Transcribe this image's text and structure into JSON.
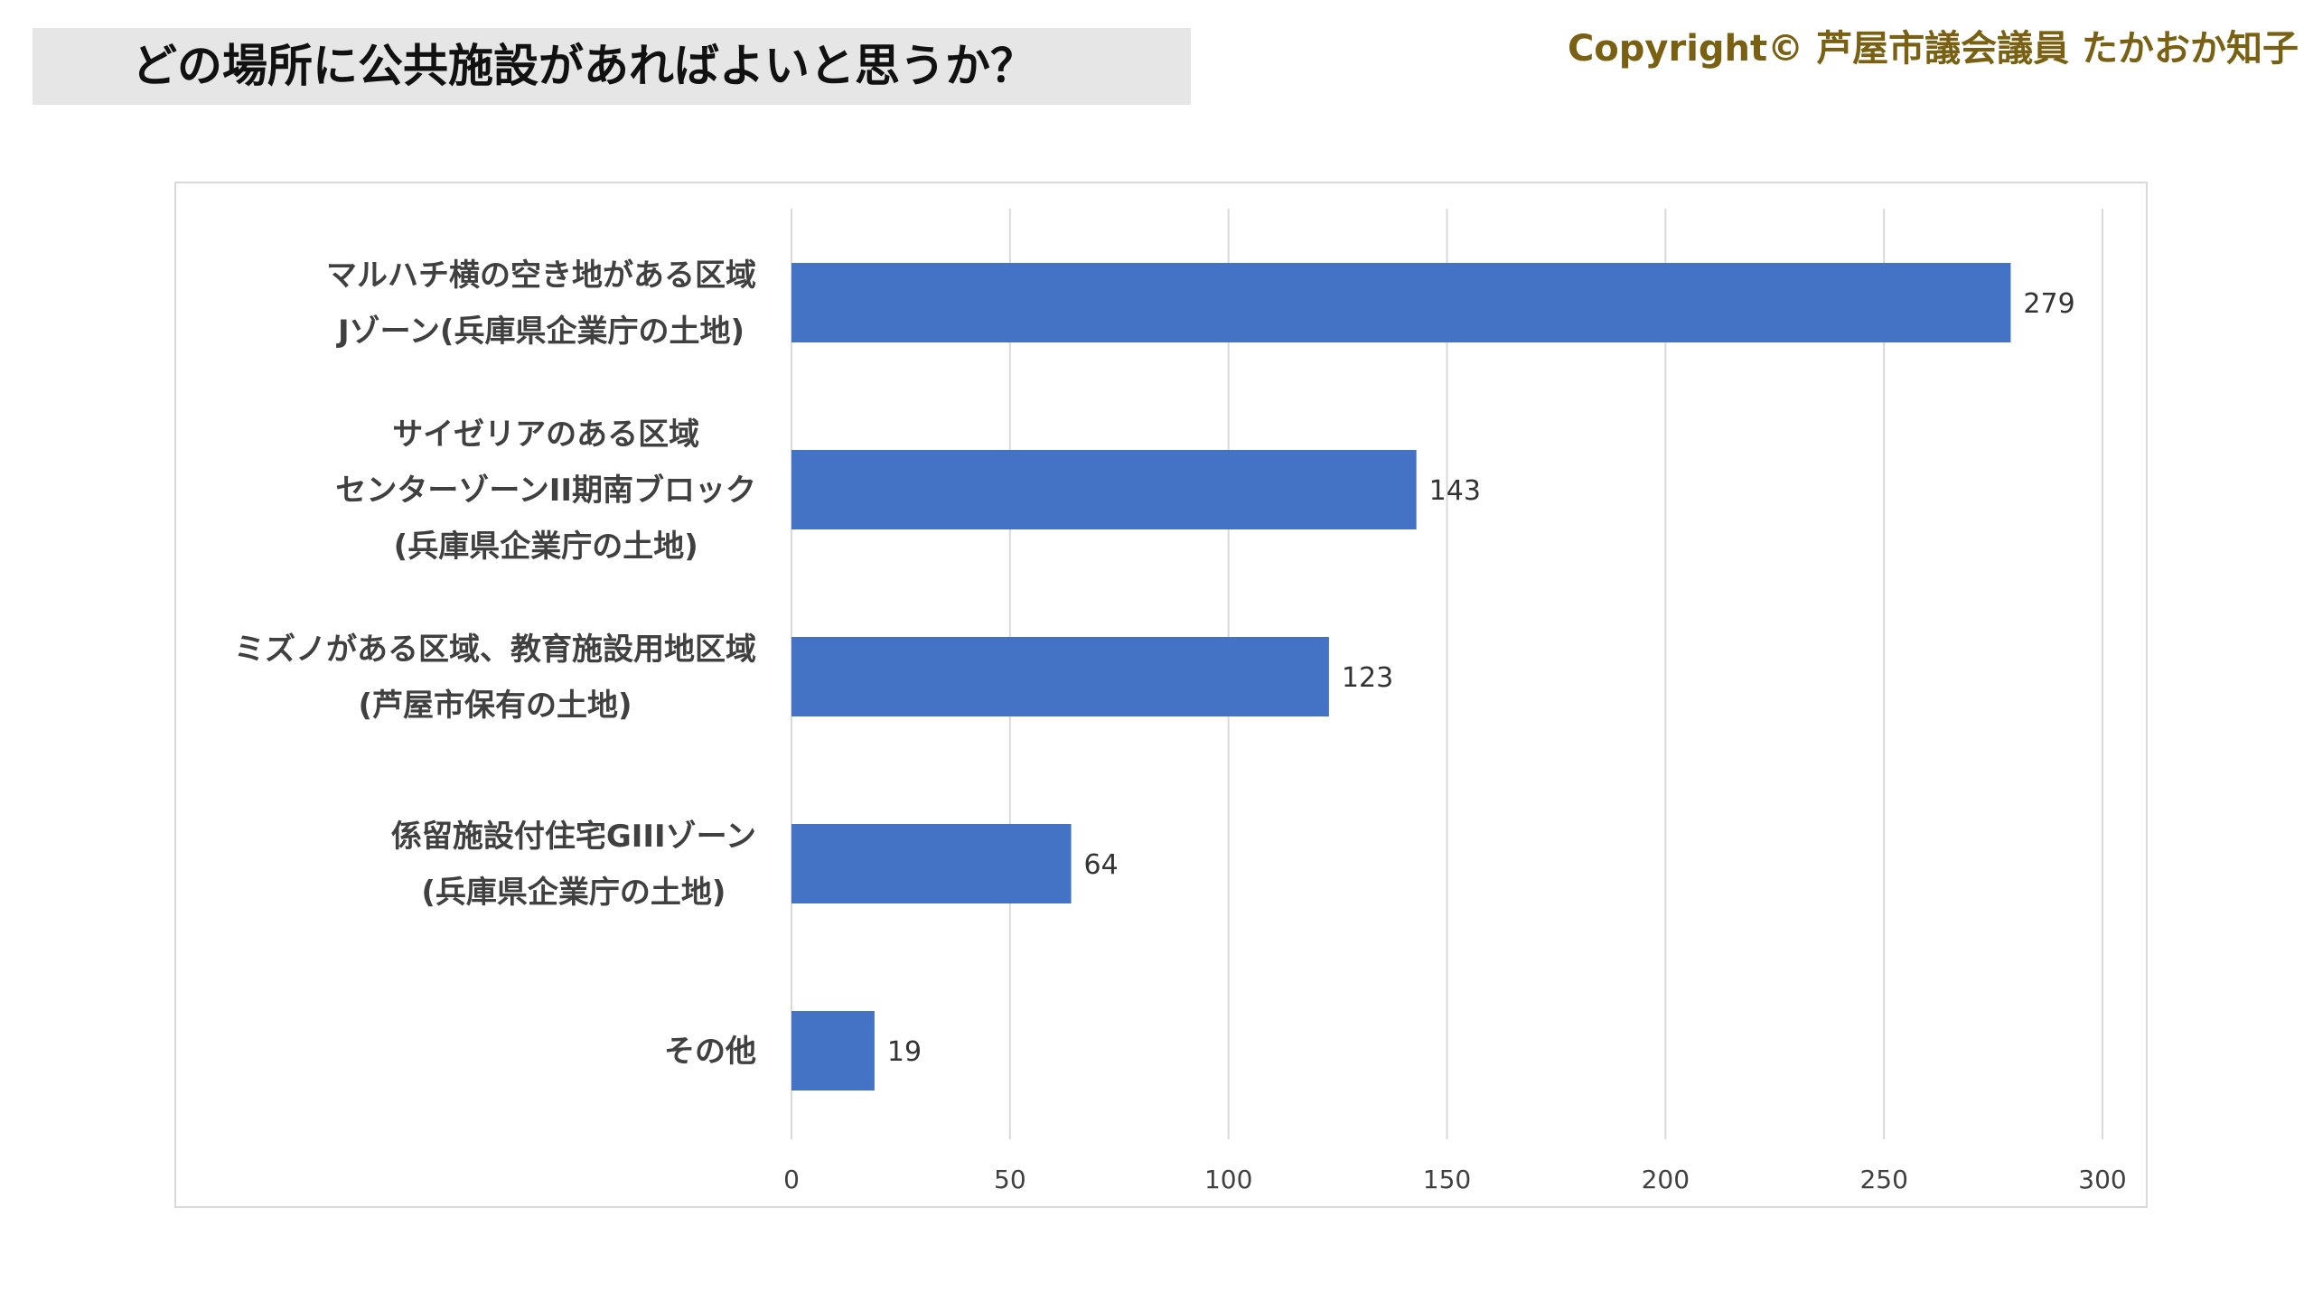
{
  "page": {
    "title": "どの場所に公共施設があればよいと思うか？",
    "copyright": "Copyright© 芦屋市議会議員 たかおか知子"
  },
  "colors": {
    "bar": "#4472c4",
    "title_bg": "#e6e6e6",
    "copyright_text": "#7a6012",
    "gridline": "#d9d9d9"
  },
  "chart_data": {
    "type": "bar",
    "orientation": "horizontal",
    "categories": [
      [
        "マルハチ横の空き地がある区域",
        "Jゾーン(兵庫県企業庁の土地)"
      ],
      [
        "サイゼリアのある区域",
        "センターゾーンII期南ブロック",
        "(兵庫県企業庁の土地)"
      ],
      [
        "ミズノがある区域、教育施設用地区域",
        "(芦屋市保有の土地)"
      ],
      [
        "係留施設付住宅GIIIゾーン",
        "(兵庫県企業庁の土地)"
      ],
      [
        "その他"
      ]
    ],
    "values": [
      279,
      143,
      123,
      64,
      19
    ],
    "xlim": [
      0,
      300
    ],
    "xticks": [
      0,
      50,
      100,
      150,
      200,
      250,
      300
    ],
    "grid": true,
    "data_labels": true,
    "legend": "none"
  }
}
